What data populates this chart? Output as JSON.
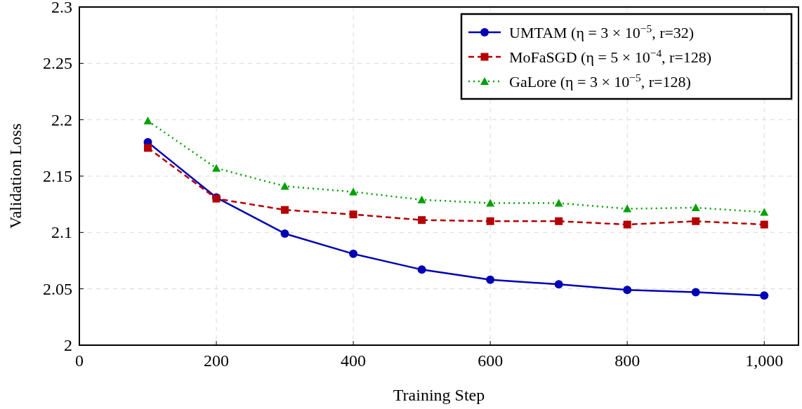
{
  "chart_data": {
    "type": "line",
    "xlabel": "Training Step",
    "ylabel": "Validation Loss",
    "x": [
      100,
      200,
      300,
      400,
      500,
      600,
      700,
      800,
      900,
      1000
    ],
    "series": [
      {
        "name": "UMTAM (η = 3 × 10$^{−5}$, r=32)",
        "color": "#0000b4",
        "marker": "circle",
        "line_style": "solid",
        "values": [
          2.18,
          2.131,
          2.099,
          2.081,
          2.067,
          2.058,
          2.054,
          2.049,
          2.047,
          2.044
        ]
      },
      {
        "name": "MoFaSGD (η = 5 × 10$^{−4}$, r=128)",
        "color": "#b40000",
        "marker": "square",
        "line_style": "dashed",
        "values": [
          2.175,
          2.13,
          2.12,
          2.116,
          2.111,
          2.11,
          2.11,
          2.107,
          2.11,
          2.107
        ]
      },
      {
        "name": "GaLore (η = 3 × 10$^{−5}$, r=128)",
        "color": "#00a000",
        "marker": "triangle",
        "line_style": "dotted",
        "values": [
          2.199,
          2.157,
          2.141,
          2.136,
          2.129,
          2.126,
          2.126,
          2.121,
          2.122,
          2.118
        ]
      }
    ],
    "xlim": [
      0,
      1050
    ],
    "xticks": [
      0,
      200,
      400,
      600,
      800,
      {
        "value": 1000,
        "label": "1,000"
      }
    ],
    "ylim": [
      2,
      2.3
    ],
    "yticks": [
      2,
      2.05,
      2.1,
      2.15,
      2.2,
      2.25,
      2.3
    ],
    "grid": true,
    "legend": "top right"
  }
}
